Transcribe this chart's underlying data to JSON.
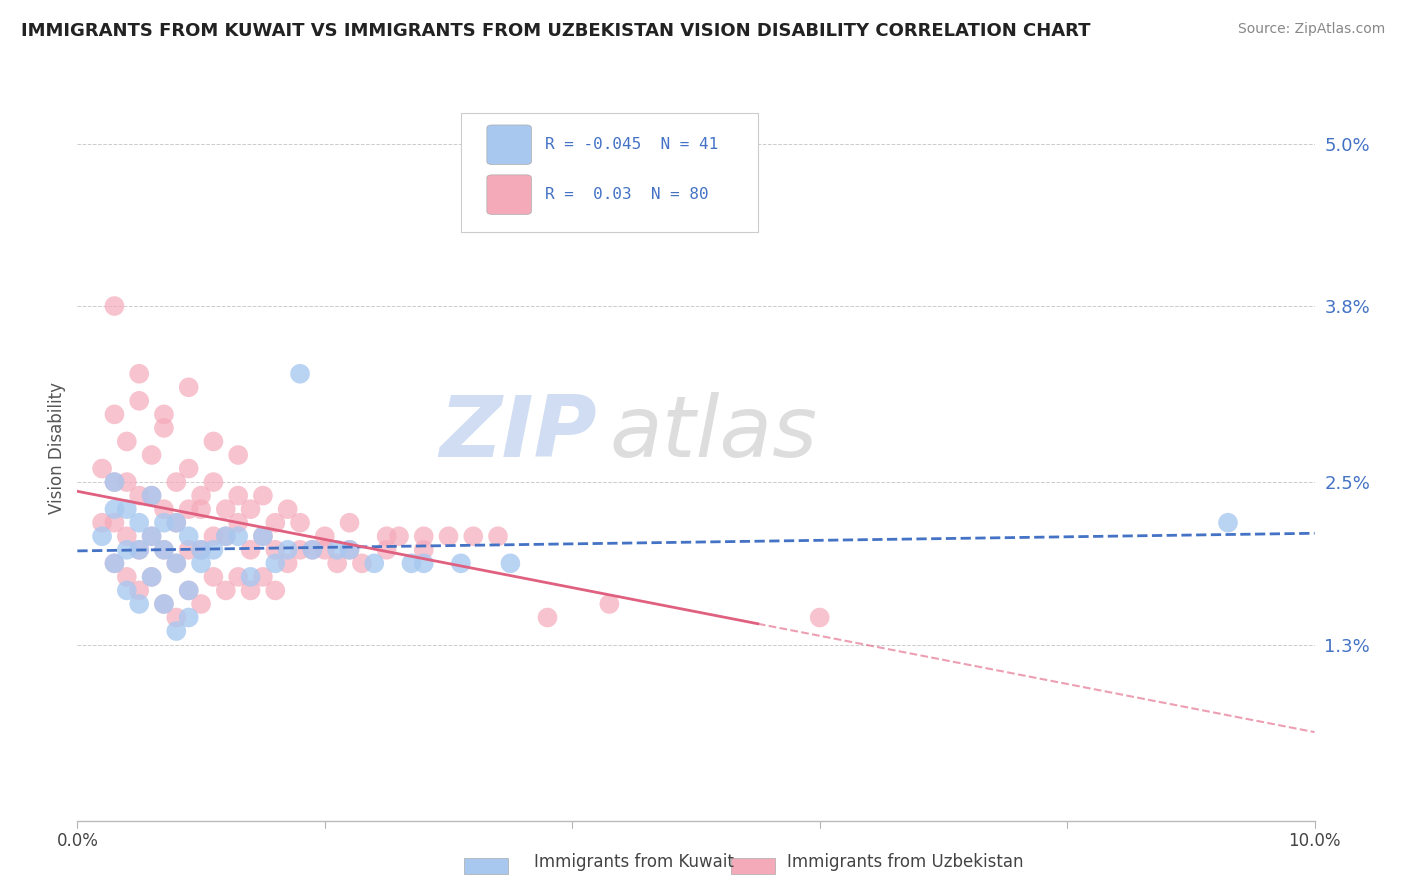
{
  "title": "IMMIGRANTS FROM KUWAIT VS IMMIGRANTS FROM UZBEKISTAN VISION DISABILITY CORRELATION CHART",
  "source": "Source: ZipAtlas.com",
  "ylabel": "Vision Disability",
  "xlim": [
    0.0,
    0.1
  ],
  "ylim": [
    0.0,
    0.055
  ],
  "yticks": [
    0.013,
    0.025,
    0.038,
    0.05
  ],
  "ytick_labels": [
    "1.3%",
    "2.5%",
    "3.8%",
    "5.0%"
  ],
  "xticks": [
    0.0,
    0.02,
    0.04,
    0.06,
    0.08,
    0.1
  ],
  "kuwait_R": -0.045,
  "kuwait_N": 41,
  "uzbekistan_R": 0.03,
  "uzbekistan_N": 80,
  "kuwait_color": "#a8c8f0",
  "uzbekistan_color": "#f5aaba",
  "kuwait_line_color": "#4472c4",
  "uzbekistan_line_color": "#e06080",
  "watermark_zip": "ZIP",
  "watermark_atlas": "atlas",
  "background_color": "#ffffff",
  "grid_color": "#cccccc",
  "legend_r_color": "#4472c4",
  "kuwait_x": [
    0.002,
    0.003,
    0.003,
    0.003,
    0.004,
    0.004,
    0.004,
    0.005,
    0.005,
    0.005,
    0.006,
    0.006,
    0.006,
    0.007,
    0.007,
    0.007,
    0.008,
    0.008,
    0.008,
    0.009,
    0.009,
    0.01,
    0.011,
    0.012,
    0.013,
    0.015,
    0.016,
    0.017,
    0.019,
    0.021,
    0.024,
    0.027,
    0.031,
    0.018,
    0.022,
    0.028,
    0.035,
    0.009,
    0.014,
    0.093,
    0.01
  ],
  "kuwait_y": [
    0.021,
    0.019,
    0.023,
    0.025,
    0.017,
    0.02,
    0.023,
    0.016,
    0.02,
    0.022,
    0.018,
    0.021,
    0.024,
    0.016,
    0.02,
    0.022,
    0.014,
    0.019,
    0.022,
    0.017,
    0.021,
    0.019,
    0.02,
    0.021,
    0.021,
    0.021,
    0.019,
    0.02,
    0.02,
    0.02,
    0.019,
    0.019,
    0.019,
    0.033,
    0.02,
    0.019,
    0.019,
    0.015,
    0.018,
    0.022,
    0.02
  ],
  "uzbekistan_x": [
    0.002,
    0.002,
    0.003,
    0.003,
    0.003,
    0.004,
    0.004,
    0.004,
    0.005,
    0.005,
    0.005,
    0.006,
    0.006,
    0.006,
    0.007,
    0.007,
    0.007,
    0.008,
    0.008,
    0.008,
    0.009,
    0.009,
    0.009,
    0.01,
    0.01,
    0.01,
    0.011,
    0.011,
    0.012,
    0.012,
    0.013,
    0.013,
    0.014,
    0.014,
    0.015,
    0.015,
    0.016,
    0.016,
    0.017,
    0.018,
    0.019,
    0.02,
    0.021,
    0.022,
    0.023,
    0.025,
    0.026,
    0.028,
    0.03,
    0.032,
    0.003,
    0.004,
    0.005,
    0.006,
    0.007,
    0.008,
    0.009,
    0.01,
    0.011,
    0.012,
    0.013,
    0.014,
    0.015,
    0.016,
    0.017,
    0.018,
    0.02,
    0.022,
    0.025,
    0.028,
    0.003,
    0.005,
    0.007,
    0.009,
    0.011,
    0.013,
    0.034,
    0.038,
    0.043,
    0.06
  ],
  "uzbekistan_y": [
    0.022,
    0.026,
    0.019,
    0.022,
    0.025,
    0.018,
    0.021,
    0.025,
    0.017,
    0.02,
    0.024,
    0.018,
    0.021,
    0.024,
    0.016,
    0.02,
    0.023,
    0.015,
    0.019,
    0.022,
    0.017,
    0.02,
    0.023,
    0.016,
    0.02,
    0.023,
    0.018,
    0.021,
    0.017,
    0.021,
    0.018,
    0.022,
    0.017,
    0.02,
    0.018,
    0.021,
    0.017,
    0.02,
    0.019,
    0.02,
    0.02,
    0.02,
    0.019,
    0.02,
    0.019,
    0.02,
    0.021,
    0.02,
    0.021,
    0.021,
    0.03,
    0.028,
    0.031,
    0.027,
    0.03,
    0.025,
    0.026,
    0.024,
    0.025,
    0.023,
    0.024,
    0.023,
    0.024,
    0.022,
    0.023,
    0.022,
    0.021,
    0.022,
    0.021,
    0.021,
    0.038,
    0.033,
    0.029,
    0.032,
    0.028,
    0.027,
    0.021,
    0.015,
    0.016,
    0.015
  ]
}
